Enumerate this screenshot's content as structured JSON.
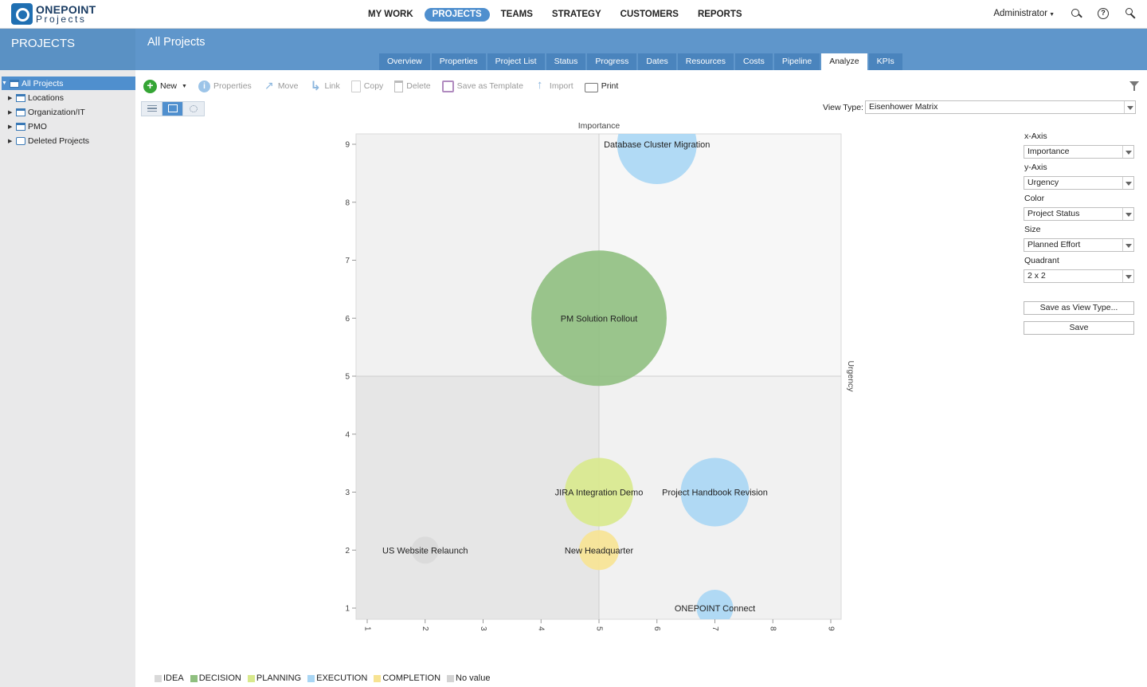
{
  "app": {
    "logo_line1": "ONEPOINT",
    "logo_line2": "Projects"
  },
  "nav": {
    "items": [
      "MY WORK",
      "PROJECTS",
      "TEAMS",
      "STRATEGY",
      "CUSTOMERS",
      "REPORTS"
    ],
    "active": "PROJECTS",
    "user": "Administrator"
  },
  "sidebar": {
    "title": "PROJECTS",
    "items": [
      {
        "label": "All Projects",
        "selected": true
      },
      {
        "label": "Locations"
      },
      {
        "label": "Organization/IT"
      },
      {
        "label": "PMO"
      },
      {
        "label": "Deleted Projects"
      }
    ]
  },
  "page": {
    "title": "All Projects",
    "tabs": [
      "Overview",
      "Properties",
      "Project List",
      "Status",
      "Progress",
      "Dates",
      "Resources",
      "Costs",
      "Pipeline",
      "Analyze",
      "KPIs"
    ],
    "active_tab": "Analyze"
  },
  "toolbar": {
    "new": "New",
    "properties": "Properties",
    "move": "Move",
    "link": "Link",
    "copy": "Copy",
    "delete": "Delete",
    "save_template": "Save as Template",
    "import": "Import",
    "print": "Print"
  },
  "view_type": {
    "label": "View Type:",
    "value": "Eisenhower Matrix"
  },
  "panel": {
    "x_axis_label": "x-Axis",
    "x_axis_value": "Importance",
    "y_axis_label": "y-Axis",
    "y_axis_value": "Urgency",
    "color_label": "Color",
    "color_value": "Project Status",
    "size_label": "Size",
    "size_value": "Planned Effort",
    "quadrant_label": "Quadrant",
    "quadrant_value": "2 x 2",
    "save_view_type": "Save as View Type...",
    "save": "Save"
  },
  "chart_data": {
    "type": "scatter",
    "subtype": "bubble",
    "xlabel": "Importance",
    "ylabel": "Urgency",
    "xlim": [
      1,
      9
    ],
    "ylim": [
      1,
      9
    ],
    "x_ticks": [
      1,
      2,
      3,
      4,
      5,
      6,
      7,
      8,
      9
    ],
    "y_ticks": [
      1,
      2,
      3,
      4,
      5,
      6,
      7,
      8,
      9
    ],
    "quadrant_split": {
      "x": 5,
      "y": 5
    },
    "status_colors": {
      "IDEA": "#d9d9d9",
      "DECISION": "#8fbf7f",
      "PLANNING": "#d8e98c",
      "EXECUTION": "#a9d6f4",
      "COMPLETION": "#f7e392",
      "No value": "#d3d3d3"
    },
    "legend": [
      "IDEA",
      "DECISION",
      "PLANNING",
      "EXECUTION",
      "COMPLETION",
      "No value"
    ],
    "points": [
      {
        "label": "Database Cluster Migration",
        "x": 6,
        "y": 9,
        "status": "EXECUTION",
        "size": 50
      },
      {
        "label": "PM Solution Rollout",
        "x": 5,
        "y": 6,
        "status": "DECISION",
        "size": 85
      },
      {
        "label": "JIRA Integration Demo",
        "x": 5,
        "y": 3,
        "status": "PLANNING",
        "size": 43
      },
      {
        "label": "Project Handbook Revision",
        "x": 7,
        "y": 3,
        "status": "EXECUTION",
        "size": 43
      },
      {
        "label": "US Website Relaunch",
        "x": 2,
        "y": 2,
        "status": "IDEA",
        "size": 17
      },
      {
        "label": "New Headquarter",
        "x": 5,
        "y": 2,
        "status": "COMPLETION",
        "size": 25
      },
      {
        "label": "ONEPOINT Connect",
        "x": 7,
        "y": 1,
        "status": "EXECUTION",
        "size": 23
      }
    ]
  }
}
